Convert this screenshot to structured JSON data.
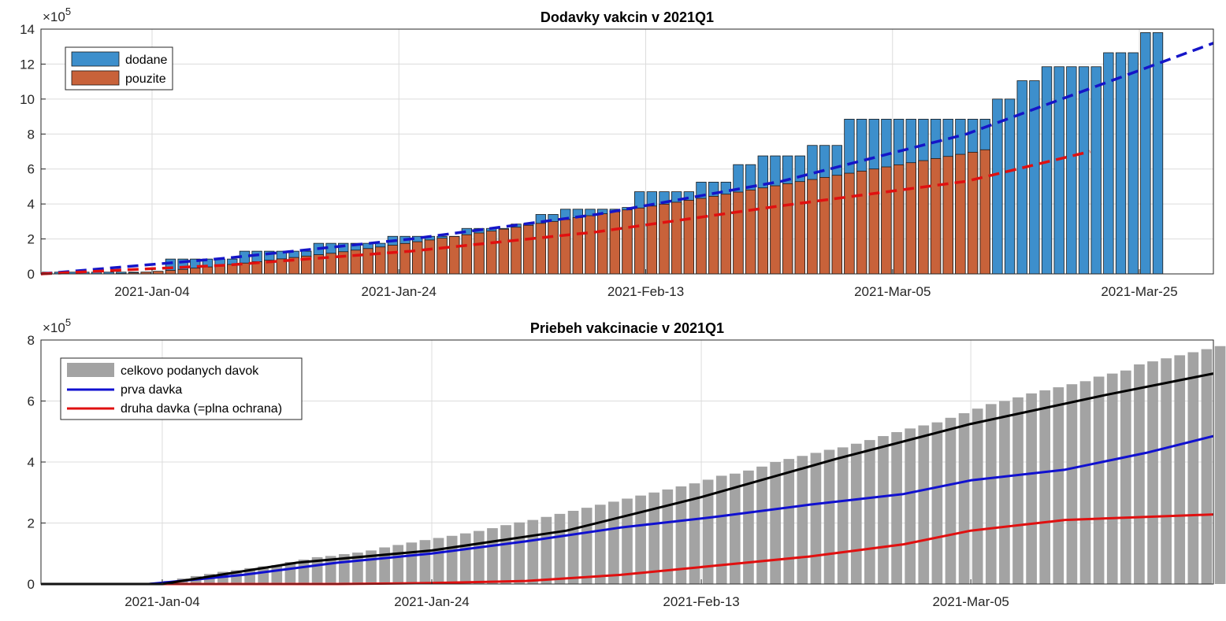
{
  "chart_data": [
    {
      "type": "bar",
      "title": "Dodavky vakcin v 2021Q1",
      "x_range": [
        "2020-12-26",
        "2021-03-31"
      ],
      "ylim": [
        0,
        14
      ],
      "y_exponent": "5",
      "y_ticks": [
        0,
        2,
        4,
        6,
        8,
        10,
        12,
        14
      ],
      "x_tick_labels": [
        "2021-Jan-04",
        "2021-Jan-24",
        "2021-Feb-13",
        "2021-Mar-05",
        "2021-Mar-25"
      ],
      "grid": true,
      "legend_position": "top-left",
      "series": [
        {
          "name": "dodane",
          "kind": "bar",
          "color": "#3d8fcc",
          "x_start": "2020-12-26",
          "values": [
            0.1,
            0.1,
            0.1,
            0.1,
            0.1,
            0.1,
            0.1,
            0.1,
            0.1,
            0.1,
            0.85,
            0.85,
            0.85,
            0.85,
            0.85,
            0.85,
            1.3,
            1.3,
            1.3,
            1.3,
            1.3,
            1.3,
            1.75,
            1.75,
            1.75,
            1.75,
            1.75,
            1.75,
            2.15,
            2.15,
            2.15,
            2.15,
            2.15,
            2.15,
            2.6,
            2.6,
            2.6,
            2.6,
            2.85,
            2.85,
            3.4,
            3.4,
            3.7,
            3.7,
            3.7,
            3.7,
            3.7,
            3.8,
            4.7,
            4.7,
            4.7,
            4.7,
            4.7,
            5.25,
            5.25,
            5.25,
            6.25,
            6.25,
            6.75,
            6.75,
            6.75,
            6.75,
            7.35,
            7.35,
            7.35,
            8.85,
            8.85,
            8.85,
            8.85,
            8.85,
            8.85,
            8.85,
            8.85,
            8.85,
            8.85,
            8.85,
            8.85,
            10,
            10,
            11.05,
            11.05,
            11.85,
            11.85,
            11.85,
            11.85,
            11.85,
            12.65,
            12.65,
            12.65,
            13.8,
            13.8
          ]
        },
        {
          "name": "pouzite",
          "kind": "bar",
          "color": "#c8623a",
          "x_start": "2020-12-26",
          "values": [
            0,
            0,
            0,
            0,
            0,
            0,
            0.02,
            0.06,
            0.1,
            0.15,
            0.2,
            0.26,
            0.33,
            0.4,
            0.47,
            0.54,
            0.62,
            0.7,
            0.78,
            0.86,
            0.94,
            1.02,
            1.1,
            1.18,
            1.27,
            1.36,
            1.45,
            1.54,
            1.64,
            1.74,
            1.84,
            1.94,
            2.04,
            2.14,
            2.24,
            2.34,
            2.45,
            2.56,
            2.67,
            2.78,
            2.89,
            3.0,
            3.11,
            3.22,
            3.33,
            3.44,
            3.55,
            3.66,
            3.77,
            3.88,
            3.99,
            4.1,
            4.21,
            4.32,
            4.44,
            4.56,
            4.68,
            4.8,
            4.92,
            5.04,
            5.16,
            5.28,
            5.4,
            5.52,
            5.64,
            5.76,
            5.88,
            6.0,
            6.12,
            6.24,
            6.36,
            6.48,
            6.6,
            6.72,
            6.84,
            6.96,
            7.1
          ]
        },
        {
          "name": "",
          "kind": "trend",
          "color": "#1515c8",
          "style": "dashed",
          "points": [
            [
              "2020-12-26",
              0
            ],
            [
              "2021-01-10",
              0.9
            ],
            [
              "2021-01-25",
              2.0
            ],
            [
              "2021-02-09",
              3.4
            ],
            [
              "2021-02-24",
              5.3
            ],
            [
              "2021-03-11",
              8.0
            ],
            [
              "2021-03-31",
              13.2
            ]
          ]
        },
        {
          "name": "",
          "kind": "trend",
          "color": "#e01010",
          "style": "dashed",
          "points": [
            [
              "2020-12-26",
              0
            ],
            [
              "2021-01-10",
              0.5
            ],
            [
              "2021-01-25",
              1.3
            ],
            [
              "2021-02-09",
              2.4
            ],
            [
              "2021-02-24",
              3.9
            ],
            [
              "2021-03-11",
              5.3
            ],
            [
              "2021-03-21",
              7.0
            ]
          ]
        }
      ]
    },
    {
      "type": "bar",
      "title": "Priebeh vakcinacie v 2021Q1",
      "x_range": [
        "2020-12-26",
        "2021-03-23"
      ],
      "ylim": [
        0,
        8
      ],
      "y_exponent": "5",
      "y_ticks": [
        0,
        2,
        4,
        6,
        8
      ],
      "x_tick_labels": [
        "2021-Jan-04",
        "2021-Jan-24",
        "2021-Feb-13",
        "2021-Mar-05"
      ],
      "grid": true,
      "legend_position": "top-left",
      "series": [
        {
          "name": "celkovo podanych davok",
          "kind": "bar",
          "color": "#a3a3a3",
          "x_start": "2020-12-26",
          "values": [
            0,
            0,
            0,
            0,
            0,
            0,
            0,
            0,
            0.05,
            0.1,
            0.18,
            0.26,
            0.33,
            0.4,
            0.45,
            0.52,
            0.58,
            0.62,
            0.72,
            0.8,
            0.88,
            0.92,
            0.98,
            1.03,
            1.1,
            1.2,
            1.28,
            1.36,
            1.44,
            1.51,
            1.58,
            1.66,
            1.74,
            1.83,
            1.93,
            2.02,
            2.1,
            2.2,
            2.3,
            2.4,
            2.5,
            2.6,
            2.7,
            2.8,
            2.9,
            3.0,
            3.1,
            3.2,
            3.3,
            3.42,
            3.55,
            3.62,
            3.72,
            3.85,
            4.0,
            4.1,
            4.2,
            4.3,
            4.4,
            4.48,
            4.6,
            4.72,
            4.85,
            4.98,
            5.1,
            5.2,
            5.3,
            5.45,
            5.6,
            5.75,
            5.9,
            6.0,
            6.12,
            6.25,
            6.35,
            6.45,
            6.55,
            6.65,
            6.8,
            6.9,
            7.0,
            7.2,
            7.3,
            7.4,
            7.5,
            7.6,
            7.7,
            7.8
          ]
        },
        {
          "name": "prva davka",
          "kind": "line",
          "color": "#1010d0",
          "points": [
            [
              "2020-12-26",
              0
            ],
            [
              "2021-01-03",
              0
            ],
            [
              "2021-01-10",
              0.3
            ],
            [
              "2021-01-17",
              0.7
            ],
            [
              "2021-01-24",
              1.0
            ],
            [
              "2021-01-31",
              1.4
            ],
            [
              "2021-02-07",
              1.85
            ],
            [
              "2021-02-14",
              2.2
            ],
            [
              "2021-02-21",
              2.6
            ],
            [
              "2021-02-28",
              2.95
            ],
            [
              "2021-03-05",
              3.4
            ],
            [
              "2021-03-12",
              3.75
            ],
            [
              "2021-03-18",
              4.3
            ],
            [
              "2021-03-23",
              4.85
            ]
          ]
        },
        {
          "name": "druha davka (=plna ochrana)",
          "kind": "line",
          "color": "#e01010",
          "points": [
            [
              "2020-12-26",
              0
            ],
            [
              "2021-01-17",
              0
            ],
            [
              "2021-01-24",
              0.03
            ],
            [
              "2021-01-31",
              0.1
            ],
            [
              "2021-02-07",
              0.3
            ],
            [
              "2021-02-14",
              0.6
            ],
            [
              "2021-02-21",
              0.9
            ],
            [
              "2021-02-28",
              1.3
            ],
            [
              "2021-03-05",
              1.75
            ],
            [
              "2021-03-12",
              2.1
            ],
            [
              "2021-03-18",
              2.2
            ],
            [
              "2021-03-23",
              2.28
            ]
          ]
        },
        {
          "name": "",
          "kind": "trend",
          "color": "#000000",
          "points": [
            [
              "2020-12-26",
              0
            ],
            [
              "2021-01-04",
              0
            ],
            [
              "2021-01-14",
              0.7
            ],
            [
              "2021-01-24",
              1.1
            ],
            [
              "2021-02-03",
              1.75
            ],
            [
              "2021-02-13",
              2.85
            ],
            [
              "2021-02-23",
              4.1
            ],
            [
              "2021-03-05",
              5.25
            ],
            [
              "2021-03-15",
              6.2
            ],
            [
              "2021-03-23",
              6.9
            ]
          ]
        }
      ]
    }
  ]
}
